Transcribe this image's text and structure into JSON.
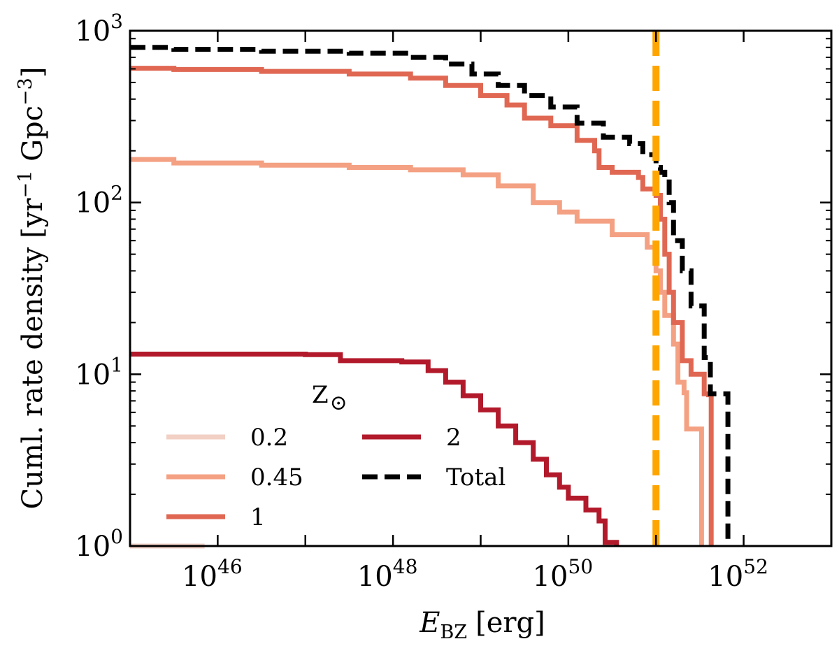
{
  "chart_data": {
    "type": "line",
    "xscale": "log",
    "yscale": "log",
    "xlim_exp": [
      45,
      53
    ],
    "ylim_exp": [
      0,
      3
    ],
    "xlabel": {
      "main": "E",
      "sub": "BZ",
      "unit": "[erg]"
    },
    "ylabel": {
      "pre": "Cuml. rate density [yr",
      "sup1": "−1",
      "mid": " Gpc",
      "sup2": "−3",
      "post": "]"
    },
    "x_ticks": [
      {
        "base": "10",
        "exp": "46",
        "value_exp": 46
      },
      {
        "base": "10",
        "exp": "48",
        "value_exp": 48
      },
      {
        "base": "10",
        "exp": "50",
        "value_exp": 50
      },
      {
        "base": "10",
        "exp": "52",
        "value_exp": 52
      }
    ],
    "y_ticks": [
      {
        "base": "10",
        "exp": "0",
        "value_exp": 0
      },
      {
        "base": "10",
        "exp": "1",
        "value_exp": 1
      },
      {
        "base": "10",
        "exp": "2",
        "value_exp": 2
      },
      {
        "base": "10",
        "exp": "3",
        "value_exp": 3
      }
    ],
    "legend_title": "Z",
    "legend_title_symbol": "⊙",
    "vline": {
      "x_exp": 51.0,
      "color": "#ffa500",
      "style": "dashed"
    },
    "series": [
      {
        "name": "0.2",
        "color": "#f2d0c4",
        "style": "solid",
        "points": [
          [
            45.0,
            1.0
          ],
          [
            45.85,
            1.0
          ]
        ]
      },
      {
        "name": "0.45",
        "color": "#f4a183",
        "style": "solid",
        "points": [
          [
            45.0,
            178
          ],
          [
            45.5,
            170
          ],
          [
            46.5,
            165
          ],
          [
            47.5,
            160
          ],
          [
            48.2,
            155
          ],
          [
            48.8,
            145
          ],
          [
            49.2,
            125
          ],
          [
            49.6,
            100
          ],
          [
            49.9,
            88
          ],
          [
            50.1,
            78
          ],
          [
            50.5,
            65
          ],
          [
            50.9,
            55
          ],
          [
            51.0,
            40
          ],
          [
            51.05,
            30
          ],
          [
            51.1,
            22
          ],
          [
            51.2,
            15
          ],
          [
            51.25,
            9
          ],
          [
            51.32,
            7.8
          ],
          [
            51.35,
            4.8
          ],
          [
            51.5,
            4.8
          ],
          [
            51.52,
            1.0
          ]
        ]
      },
      {
        "name": "1",
        "color": "#e06853",
        "style": "solid",
        "points": [
          [
            45.0,
            605
          ],
          [
            45.5,
            595
          ],
          [
            46.5,
            580
          ],
          [
            47.5,
            560
          ],
          [
            48.2,
            530
          ],
          [
            48.6,
            480
          ],
          [
            49.0,
            420
          ],
          [
            49.3,
            370
          ],
          [
            49.5,
            310
          ],
          [
            49.8,
            280
          ],
          [
            50.1,
            230
          ],
          [
            50.3,
            200
          ],
          [
            50.35,
            160
          ],
          [
            50.5,
            150
          ],
          [
            50.8,
            140
          ],
          [
            50.85,
            120
          ],
          [
            51.0,
            110
          ],
          [
            51.05,
            80
          ],
          [
            51.1,
            50
          ],
          [
            51.15,
            30
          ],
          [
            51.2,
            20
          ],
          [
            51.3,
            12
          ],
          [
            51.4,
            10
          ],
          [
            51.55,
            7.7
          ],
          [
            51.6,
            7.6
          ],
          [
            51.63,
            1.0
          ]
        ]
      },
      {
        "name": "2",
        "color": "#b21a2b",
        "style": "solid",
        "points": [
          [
            45.0,
            13.1
          ],
          [
            45.8,
            13.1
          ],
          [
            47.0,
            13.0
          ],
          [
            47.4,
            12.0
          ],
          [
            48.1,
            11.8
          ],
          [
            48.4,
            10.5
          ],
          [
            48.6,
            9.0
          ],
          [
            48.8,
            7.5
          ],
          [
            49.0,
            6.2
          ],
          [
            49.2,
            5.0
          ],
          [
            49.4,
            4.0
          ],
          [
            49.6,
            3.2
          ],
          [
            49.75,
            2.6
          ],
          [
            49.9,
            2.2
          ],
          [
            50.0,
            1.9
          ],
          [
            50.2,
            1.62
          ],
          [
            50.35,
            1.4
          ],
          [
            50.42,
            1.05
          ],
          [
            50.55,
            1.0
          ]
        ]
      },
      {
        "name": "Total",
        "color": "#000000",
        "style": "dashed",
        "points": [
          [
            45.0,
            800
          ],
          [
            45.5,
            780
          ],
          [
            46.5,
            760
          ],
          [
            47.5,
            740
          ],
          [
            48.2,
            700
          ],
          [
            48.6,
            640
          ],
          [
            48.9,
            560
          ],
          [
            49.2,
            480
          ],
          [
            49.5,
            420
          ],
          [
            49.8,
            360
          ],
          [
            50.1,
            290
          ],
          [
            50.4,
            240
          ],
          [
            50.7,
            220
          ],
          [
            50.85,
            190
          ],
          [
            51.0,
            160
          ],
          [
            51.05,
            150
          ],
          [
            51.1,
            140
          ],
          [
            51.15,
            100
          ],
          [
            51.2,
            60
          ],
          [
            51.3,
            40
          ],
          [
            51.4,
            25
          ],
          [
            51.55,
            12.5
          ],
          [
            51.6,
            12.0
          ],
          [
            51.62,
            7.7
          ],
          [
            51.8,
            7.7
          ],
          [
            51.82,
            1.0
          ]
        ]
      }
    ]
  }
}
